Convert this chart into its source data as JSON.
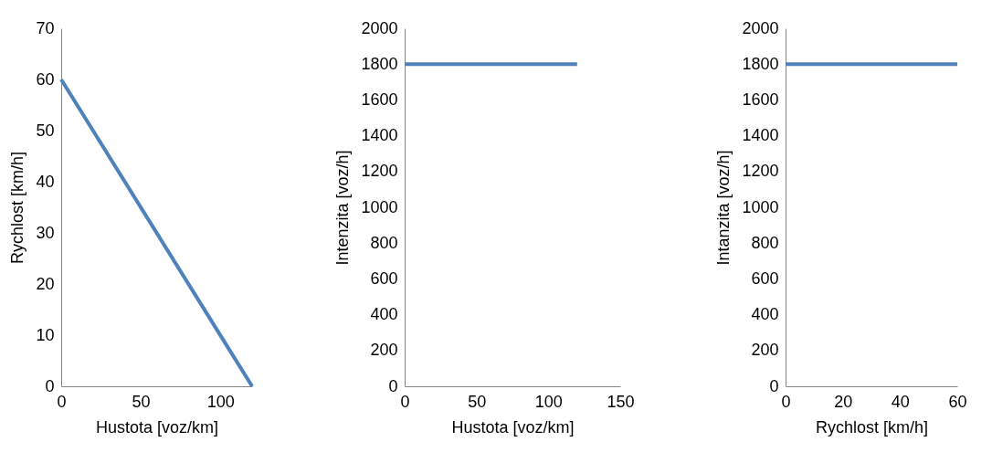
{
  "chart_data": [
    {
      "type": "line",
      "xlabel": "Hustota [voz/km]",
      "ylabel": "Rychlost [km/h]",
      "x": [
        0,
        120
      ],
      "series": [
        {
          "color": "#4f81bd",
          "values": [
            60,
            0
          ]
        }
      ],
      "xlim": [
        0,
        120
      ],
      "xticks": [
        0,
        50,
        100
      ],
      "ylim": [
        0,
        70
      ],
      "yticks": [
        0,
        10,
        20,
        30,
        40,
        50,
        60,
        70
      ],
      "grid": false,
      "marker": "none"
    },
    {
      "type": "line",
      "xlabel": "Hustota [voz/km]",
      "ylabel": "Intenzita [voz/h]",
      "x": [
        0,
        120
      ],
      "series": [
        {
          "color": "#4f81bd",
          "values": [
            1800,
            1800
          ]
        }
      ],
      "xlim": [
        0,
        150
      ],
      "xticks": [
        0,
        50,
        100,
        150
      ],
      "ylim": [
        0,
        2000
      ],
      "yticks": [
        0,
        200,
        400,
        600,
        800,
        1000,
        1200,
        1400,
        1600,
        1800,
        2000
      ],
      "grid": false,
      "marker": "none"
    },
    {
      "type": "line",
      "xlabel": "Rychlost [km/h]",
      "ylabel": "Intanzita [voz/h]",
      "x": [
        0,
        60
      ],
      "series": [
        {
          "color": "#4f81bd",
          "values": [
            1800,
            1800
          ]
        }
      ],
      "xlim": [
        0,
        60
      ],
      "xticks": [
        0,
        20,
        40,
        60
      ],
      "ylim": [
        0,
        2000
      ],
      "yticks": [
        0,
        200,
        400,
        600,
        800,
        1000,
        1200,
        1400,
        1600,
        1800,
        2000
      ],
      "grid": false,
      "marker": "none"
    }
  ]
}
